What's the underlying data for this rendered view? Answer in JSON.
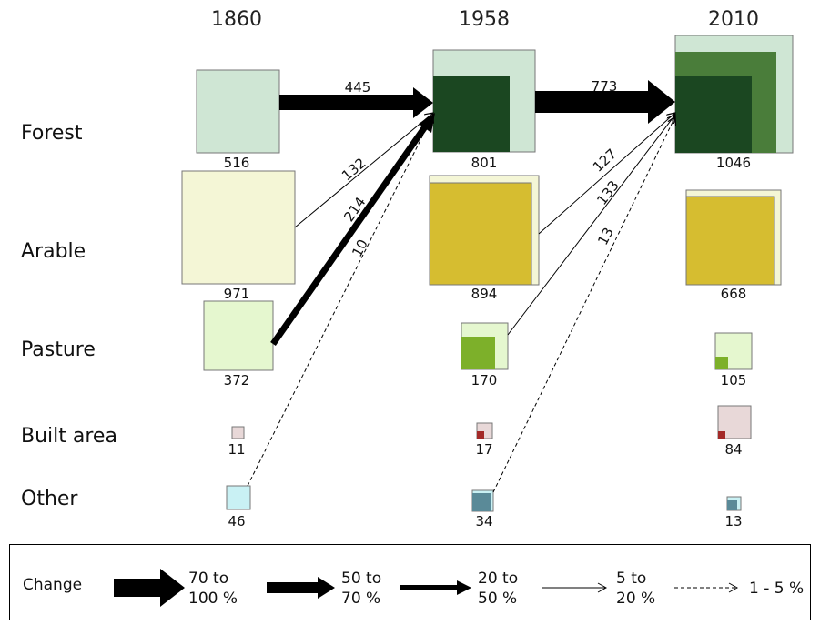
{
  "years": [
    "1860",
    "1958",
    "2010"
  ],
  "categories": [
    "Forest",
    "Arable",
    "Pasture",
    "Built area",
    "Other"
  ],
  "colors": {
    "forest_light": "#cfe6d4",
    "forest_mid": "#4a7d3a",
    "forest_dark": "#1b4721",
    "arable_light": "#f4f6d6",
    "arable_dark": "#d6bd30",
    "pasture_light": "#e5f7cf",
    "pasture_dark": "#7db02a",
    "built_light": "#e8d8d8",
    "built_dark": "#a32a28",
    "other_light": "#c9f1f4",
    "other_dark": "#5a8a98"
  },
  "chart_data": {
    "type": "flow-diagram",
    "values": {
      "Forest": {
        "1860": 516,
        "1958": 801,
        "2010": 1046
      },
      "Arable": {
        "1860": 971,
        "1958": 894,
        "2010": 668
      },
      "Pasture": {
        "1860": 372,
        "1958": 170,
        "2010": 105
      },
      "Built area": {
        "1860": 11,
        "1958": 17,
        "2010": 84
      },
      "Other": {
        "1860": 46,
        "1958": 34,
        "2010": 13
      }
    },
    "flows": [
      {
        "from": "Forest",
        "from_year": "1860",
        "to": "Forest",
        "to_year": "1958",
        "label": "445",
        "change_class": "70 to 100 %"
      },
      {
        "from": "Arable",
        "from_year": "1860",
        "to": "Forest",
        "to_year": "1958",
        "label": "132",
        "change_class": "5 to 20 %"
      },
      {
        "from": "Pasture",
        "from_year": "1860",
        "to": "Forest",
        "to_year": "1958",
        "label": "214",
        "change_class": "50 to 70 %"
      },
      {
        "from": "Other",
        "from_year": "1860",
        "to": "Forest",
        "to_year": "1958",
        "label": "10",
        "change_class": "1 - 5 %"
      },
      {
        "from": "Forest",
        "from_year": "1958",
        "to": "Forest",
        "to_year": "2010",
        "label": "773",
        "change_class": "70 to 100 %"
      },
      {
        "from": "Arable",
        "from_year": "1958",
        "to": "Forest",
        "to_year": "2010",
        "label": "127",
        "change_class": "5 to 20 %"
      },
      {
        "from": "Pasture",
        "from_year": "1958",
        "to": "Forest",
        "to_year": "2010",
        "label": "133",
        "change_class": "5 to 20 %"
      },
      {
        "from": "Other",
        "from_year": "1958",
        "to": "Forest",
        "to_year": "2010",
        "label": "13",
        "change_class": "1 - 5 %"
      }
    ]
  },
  "legend": {
    "title": "Change",
    "items": [
      {
        "line1": "70 to",
        "line2": "100 %"
      },
      {
        "line1": "50 to",
        "line2": "70 %"
      },
      {
        "line1": "20 to",
        "line2": "50 %"
      },
      {
        "line1": "5 to",
        "line2": "20 %"
      },
      {
        "line1": "1 - 5 %",
        "line2": ""
      }
    ]
  }
}
